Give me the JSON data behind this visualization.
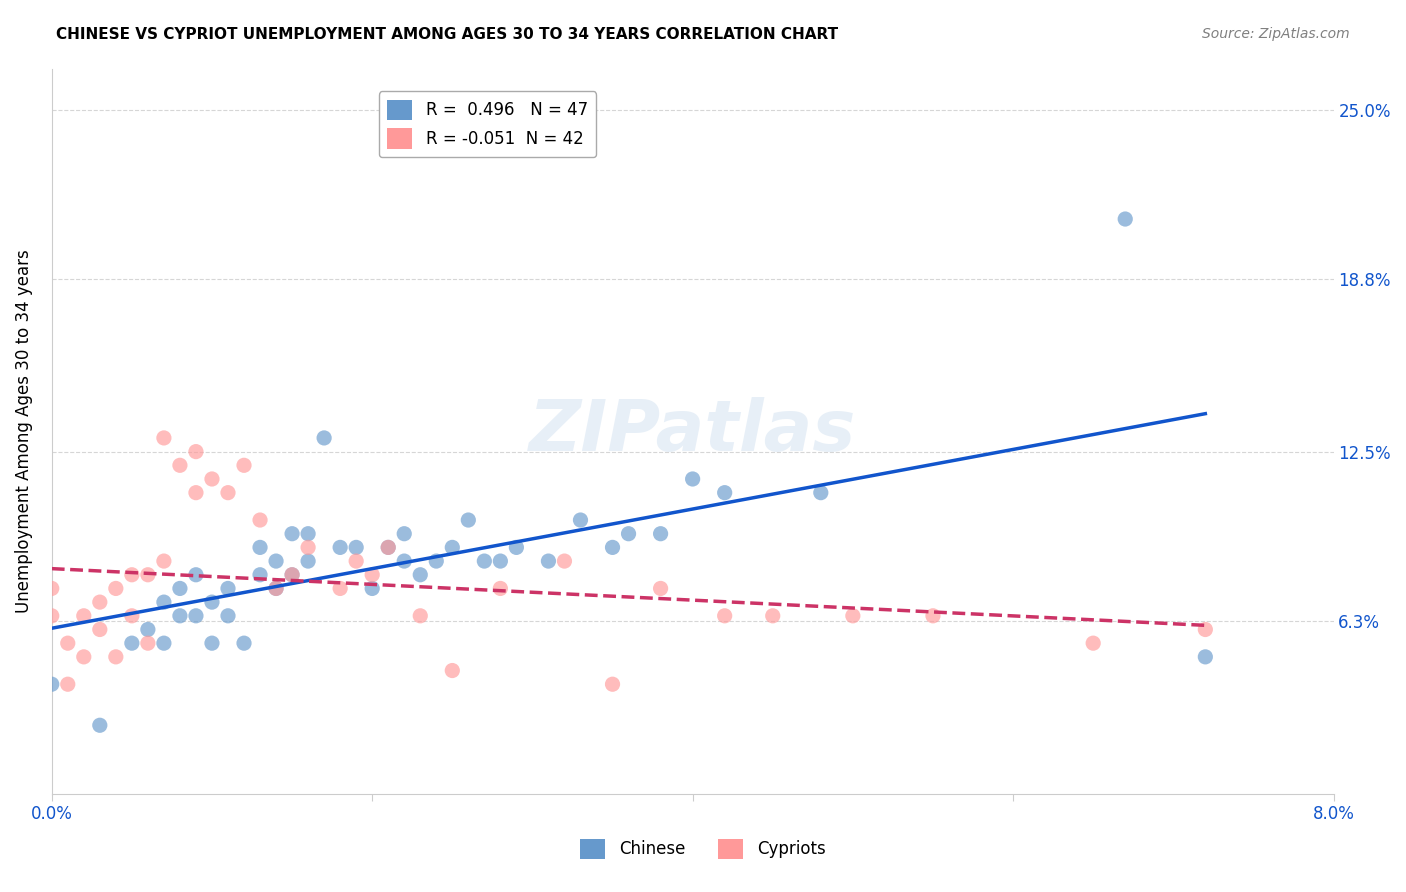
{
  "title": "CHINESE VS CYPRIOT UNEMPLOYMENT AMONG AGES 30 TO 34 YEARS CORRELATION CHART",
  "source": "Source: ZipAtlas.com",
  "ylabel": "Unemployment Among Ages 30 to 34 years",
  "xlabel_chinese": "Chinese",
  "xlabel_cypriot": "Cypriots",
  "xlim": [
    0.0,
    0.08
  ],
  "ylim": [
    0.0,
    0.265
  ],
  "yticks": [
    0.063,
    0.125,
    0.188,
    0.25
  ],
  "ytick_labels": [
    "6.3%",
    "12.5%",
    "18.8%",
    "25.0%"
  ],
  "xticks": [
    0.0,
    0.02,
    0.04,
    0.06,
    0.08
  ],
  "xtick_labels": [
    "0.0%",
    "",
    "",
    "",
    "8.0%"
  ],
  "chinese_R": 0.496,
  "chinese_N": 47,
  "cypriot_R": -0.051,
  "cypriot_N": 42,
  "chinese_color": "#6699CC",
  "cypriot_color": "#FF9999",
  "chinese_line_color": "#1155CC",
  "cypriot_line_color": "#CC3366",
  "watermark": "ZIPatlas",
  "chinese_x": [
    0.0,
    0.003,
    0.005,
    0.006,
    0.007,
    0.007,
    0.008,
    0.008,
    0.009,
    0.009,
    0.01,
    0.01,
    0.011,
    0.011,
    0.012,
    0.013,
    0.013,
    0.014,
    0.014,
    0.015,
    0.015,
    0.016,
    0.016,
    0.017,
    0.018,
    0.019,
    0.02,
    0.021,
    0.022,
    0.022,
    0.023,
    0.024,
    0.025,
    0.026,
    0.027,
    0.028,
    0.029,
    0.031,
    0.033,
    0.035,
    0.036,
    0.038,
    0.04,
    0.042,
    0.048,
    0.067,
    0.072
  ],
  "chinese_y": [
    0.04,
    0.025,
    0.055,
    0.06,
    0.055,
    0.07,
    0.065,
    0.075,
    0.065,
    0.08,
    0.055,
    0.07,
    0.065,
    0.075,
    0.055,
    0.08,
    0.09,
    0.085,
    0.075,
    0.08,
    0.095,
    0.085,
    0.095,
    0.13,
    0.09,
    0.09,
    0.075,
    0.09,
    0.085,
    0.095,
    0.08,
    0.085,
    0.09,
    0.1,
    0.085,
    0.085,
    0.09,
    0.085,
    0.1,
    0.09,
    0.095,
    0.095,
    0.115,
    0.11,
    0.11,
    0.21,
    0.05
  ],
  "cypriot_x": [
    0.0,
    0.0,
    0.001,
    0.001,
    0.002,
    0.002,
    0.003,
    0.003,
    0.004,
    0.004,
    0.005,
    0.005,
    0.006,
    0.006,
    0.007,
    0.007,
    0.008,
    0.009,
    0.009,
    0.01,
    0.011,
    0.012,
    0.013,
    0.014,
    0.015,
    0.016,
    0.018,
    0.019,
    0.02,
    0.021,
    0.023,
    0.025,
    0.028,
    0.032,
    0.035,
    0.038,
    0.042,
    0.045,
    0.05,
    0.055,
    0.065,
    0.072
  ],
  "cypriot_y": [
    0.065,
    0.075,
    0.04,
    0.055,
    0.05,
    0.065,
    0.06,
    0.07,
    0.05,
    0.075,
    0.065,
    0.08,
    0.055,
    0.08,
    0.085,
    0.13,
    0.12,
    0.125,
    0.11,
    0.115,
    0.11,
    0.12,
    0.1,
    0.075,
    0.08,
    0.09,
    0.075,
    0.085,
    0.08,
    0.09,
    0.065,
    0.045,
    0.075,
    0.085,
    0.04,
    0.075,
    0.065,
    0.065,
    0.065,
    0.065,
    0.055,
    0.06
  ]
}
